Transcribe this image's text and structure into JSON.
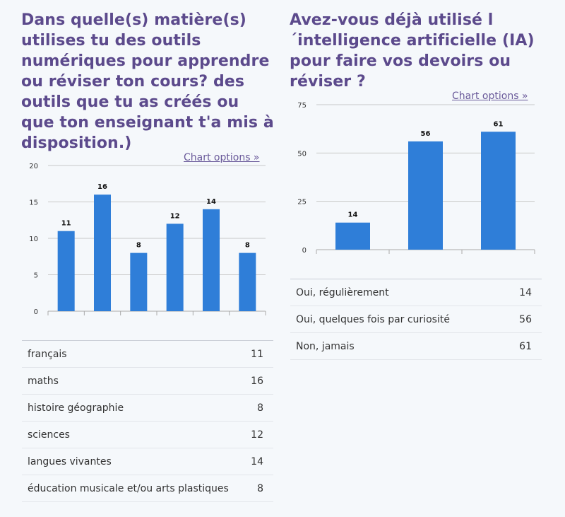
{
  "panels": [
    {
      "question": "Dans quelle(s) matière(s) utilises tu des outils numériques pour apprendre ou réviser ton cours? des outils que tu as créés ou que ton enseignant t'a mis à disposition.)",
      "chart_options_label": "Chart options »",
      "rows": [
        {
          "label": "français",
          "value": "11"
        },
        {
          "label": "maths",
          "value": "16"
        },
        {
          "label": "histoire géographie",
          "value": "8"
        },
        {
          "label": "sciences",
          "value": "12"
        },
        {
          "label": "langues vivantes",
          "value": "14"
        },
        {
          "label": "éducation musicale et/ou arts plastiques",
          "value": "8"
        }
      ]
    },
    {
      "question": "Avez-vous déjà utilisé l´intelligence artificielle (IA) pour faire vos devoirs ou réviser ?",
      "chart_options_label": "Chart options »",
      "rows": [
        {
          "label": "Oui, régulièrement",
          "value": "14"
        },
        {
          "label": "Oui, quelques fois par curiosité",
          "value": "56"
        },
        {
          "label": "Non, jamais",
          "value": "61"
        }
      ]
    }
  ],
  "colors": {
    "bar": "#2f7ed8",
    "title": "#5c4a8c",
    "grid": "#c8c8c8"
  },
  "chart_data": [
    {
      "type": "bar",
      "categories": [
        "français",
        "maths",
        "histoire géographie",
        "sciences",
        "langues vivantes",
        "éducation musicale et/ou arts plastiques"
      ],
      "values": [
        11,
        16,
        8,
        12,
        14,
        8
      ],
      "ylim": [
        0,
        20
      ],
      "yticks": [
        0,
        5,
        10,
        15,
        20
      ],
      "grid": true,
      "data_labels": true
    },
    {
      "type": "bar",
      "categories": [
        "Oui, régulièrement",
        "Oui, quelques fois par curiosité",
        "Non, jamais"
      ],
      "values": [
        14,
        56,
        61
      ],
      "ylim": [
        0,
        75
      ],
      "yticks": [
        0,
        25,
        50,
        75
      ],
      "grid": true,
      "data_labels": true
    }
  ]
}
